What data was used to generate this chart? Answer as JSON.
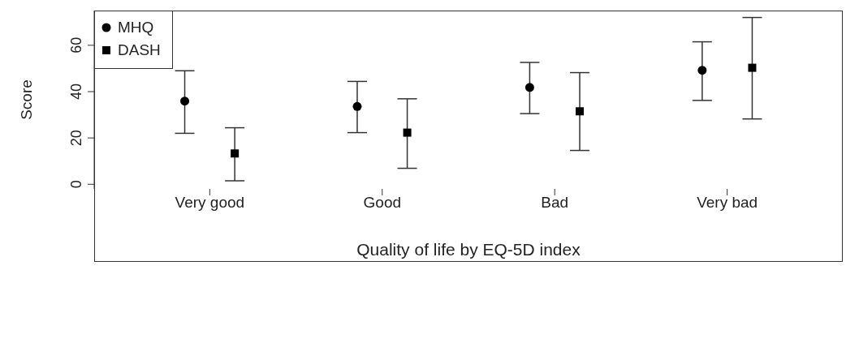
{
  "chart_data": {
    "type": "scatter",
    "xlabel": "Quality of life by EQ-5D index",
    "ylabel": "Score",
    "categories": [
      "Very good",
      "Good",
      "Bad",
      "Very bad"
    ],
    "ylim": [
      -2,
      75
    ],
    "yticks": [
      0,
      20,
      40,
      60
    ],
    "legend": "top left",
    "series": [
      {
        "name": "MHQ",
        "color": "#000000",
        "marker": "circle",
        "values": [
          35.9,
          33.6,
          41.8,
          49.2
        ],
        "errors": [
          [
            22,
            49
          ],
          [
            22.3,
            44.4
          ],
          [
            30.5,
            52.6
          ],
          [
            36.2,
            61.5
          ]
        ]
      },
      {
        "name": "DASH",
        "color": "#000000",
        "marker": "square",
        "values": [
          13.3,
          22.3,
          31.5,
          50.3
        ],
        "errors": [
          [
            1.5,
            24.4
          ],
          [
            6.9,
            36.9
          ],
          [
            14.6,
            48.2
          ],
          [
            28.2,
            72
          ]
        ]
      }
    ]
  }
}
